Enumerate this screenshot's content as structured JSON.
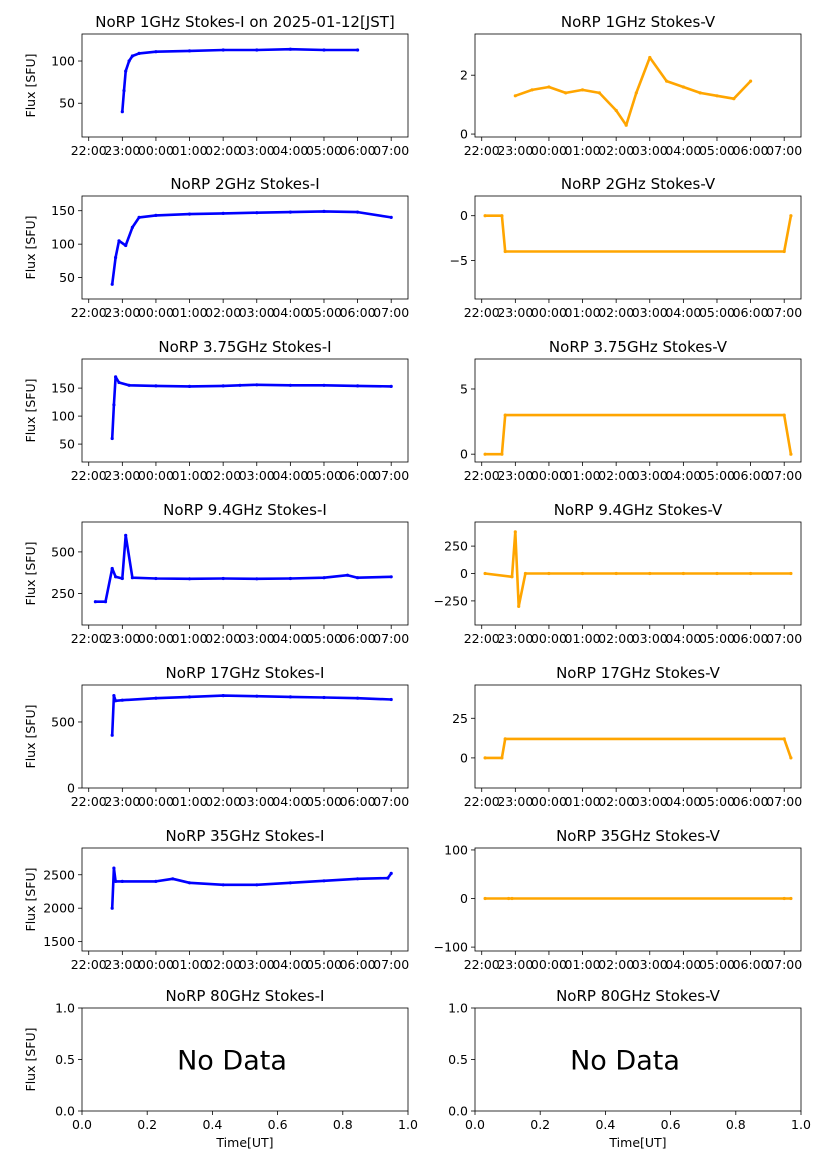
{
  "chart_data": [
    {
      "id": "p1",
      "type": "scatter",
      "title": "NoRP 1GHz Stokes-I on 2025-01-12[JST]",
      "ylabel": "Flux [SFU]",
      "xlabel": "",
      "ylim": [
        10,
        132
      ],
      "yticks": [
        "50",
        "100"
      ],
      "ytickvals": [
        50,
        100
      ],
      "xticks": [
        "22:00",
        "23:00",
        "00:00",
        "01:00",
        "02:00",
        "03:00",
        "04:00",
        "05:00",
        "06:00",
        "07:00"
      ],
      "color": "#0000ff",
      "no_data": false,
      "series": [
        {
          "x": [
            23.0,
            23.05,
            23.1,
            23.2,
            23.3,
            23.5,
            24,
            25,
            26,
            27,
            28,
            29,
            30
          ],
          "y": [
            40,
            65,
            88,
            100,
            106,
            109,
            111,
            112,
            113,
            113,
            114,
            113,
            113
          ]
        }
      ]
    },
    {
      "id": "p2",
      "type": "scatter",
      "title": "NoRP 1GHz Stokes-V",
      "ylabel": "",
      "xlabel": "",
      "ylim": [
        -0.1,
        3.4
      ],
      "yticks": [
        "0",
        "2"
      ],
      "ytickvals": [
        0,
        2
      ],
      "xticks": [
        "22:00",
        "23:00",
        "00:00",
        "01:00",
        "02:00",
        "03:00",
        "04:00",
        "05:00",
        "06:00",
        "07:00"
      ],
      "color": "#ffa500",
      "no_data": false,
      "series": [
        {
          "x": [
            23.0,
            23.5,
            24,
            24.5,
            25,
            25.5,
            26,
            26.3,
            26.6,
            27,
            27.5,
            28,
            28.5,
            29,
            29.5,
            30
          ],
          "y": [
            1.3,
            1.5,
            1.6,
            1.4,
            1.5,
            1.4,
            0.8,
            0.3,
            1.4,
            2.6,
            1.8,
            1.6,
            1.4,
            1.3,
            1.2,
            1.8
          ]
        }
      ]
    },
    {
      "id": "p3",
      "type": "scatter",
      "title": "NoRP 2GHz Stokes-I",
      "ylabel": "Flux [SFU]",
      "xlabel": "",
      "ylim": [
        18,
        172
      ],
      "yticks": [
        "50",
        "100",
        "150"
      ],
      "ytickvals": [
        50,
        100,
        150
      ],
      "xticks": [
        "22:00",
        "23:00",
        "00:00",
        "01:00",
        "02:00",
        "03:00",
        "04:00",
        "05:00",
        "06:00",
        "07:00"
      ],
      "color": "#0000ff",
      "no_data": false,
      "series": [
        {
          "x": [
            22.7,
            22.8,
            22.9,
            23.1,
            23.3,
            23.5,
            24,
            25,
            26,
            27,
            28,
            29,
            30,
            31
          ],
          "y": [
            40,
            80,
            105,
            98,
            125,
            140,
            143,
            145,
            146,
            147,
            148,
            149,
            148,
            140
          ]
        }
      ]
    },
    {
      "id": "p4",
      "type": "scatter",
      "title": "NoRP 2GHz Stokes-V",
      "ylabel": "",
      "xlabel": "",
      "ylim": [
        -9.3,
        2.2
      ],
      "yticks": [
        "0",
        "−5"
      ],
      "ytickvals": [
        0,
        -5
      ],
      "xticks": [
        "22:00",
        "23:00",
        "00:00",
        "01:00",
        "02:00",
        "03:00",
        "04:00",
        "05:00",
        "06:00",
        "07:00"
      ],
      "color": "#ffa500",
      "no_data": false,
      "series": [
        {
          "x": [
            22.1,
            22.6,
            22.7,
            31.0,
            31.2
          ],
          "y": [
            0,
            0,
            -4,
            -4,
            0
          ]
        }
      ]
    },
    {
      "id": "p5",
      "type": "scatter",
      "title": "NoRP 3.75GHz Stokes-I",
      "ylabel": "Flux [SFU]",
      "xlabel": "",
      "ylim": [
        18,
        202
      ],
      "yticks": [
        "50",
        "100",
        "150"
      ],
      "ytickvals": [
        50,
        100,
        150
      ],
      "xticks": [
        "22:00",
        "23:00",
        "00:00",
        "01:00",
        "02:00",
        "03:00",
        "04:00",
        "05:00",
        "06:00",
        "07:00"
      ],
      "color": "#0000ff",
      "no_data": false,
      "series": [
        {
          "x": [
            22.7,
            22.75,
            22.8,
            22.9,
            23.2,
            24,
            25,
            26,
            26.5,
            27,
            28,
            29,
            30,
            31
          ],
          "y": [
            60,
            120,
            170,
            160,
            155,
            154,
            153,
            154,
            155,
            156,
            155,
            155,
            154,
            153
          ]
        }
      ]
    },
    {
      "id": "p6",
      "type": "scatter",
      "title": "NoRP 3.75GHz Stokes-V",
      "ylabel": "",
      "xlabel": "",
      "ylim": [
        -0.6,
        7.3
      ],
      "yticks": [
        "0",
        "5"
      ],
      "ytickvals": [
        0,
        5
      ],
      "xticks": [
        "22:00",
        "23:00",
        "00:00",
        "01:00",
        "02:00",
        "03:00",
        "04:00",
        "05:00",
        "06:00",
        "07:00"
      ],
      "color": "#ffa500",
      "no_data": false,
      "series": [
        {
          "x": [
            22.1,
            22.6,
            22.7,
            31.0,
            31.2
          ],
          "y": [
            0,
            0,
            3,
            3,
            0
          ]
        }
      ]
    },
    {
      "id": "p7",
      "type": "scatter",
      "title": "NoRP 9.4GHz Stokes-I",
      "ylabel": "Flux [SFU]",
      "xlabel": "",
      "ylim": [
        60,
        680
      ],
      "yticks": [
        "250",
        "500"
      ],
      "ytickvals": [
        250,
        500
      ],
      "xticks": [
        "22:00",
        "23:00",
        "00:00",
        "01:00",
        "02:00",
        "03:00",
        "04:00",
        "05:00",
        "06:00",
        "07:00"
      ],
      "color": "#0000ff",
      "no_data": false,
      "series": [
        {
          "x": [
            22.2,
            22.5,
            22.7,
            22.8,
            23.0,
            23.1,
            23.3,
            24,
            25,
            26,
            27,
            28,
            29,
            29.7,
            30,
            31
          ],
          "y": [
            200,
            200,
            400,
            350,
            340,
            600,
            345,
            340,
            338,
            340,
            338,
            340,
            345,
            360,
            345,
            350
          ]
        }
      ]
    },
    {
      "id": "p8",
      "type": "scatter",
      "title": "NoRP 9.4GHz Stokes-V",
      "ylabel": "",
      "xlabel": "",
      "ylim": [
        -470,
        470
      ],
      "yticks": [
        "−250",
        "0",
        "250"
      ],
      "ytickvals": [
        -250,
        0,
        250
      ],
      "xticks": [
        "22:00",
        "23:00",
        "00:00",
        "01:00",
        "02:00",
        "03:00",
        "04:00",
        "05:00",
        "06:00",
        "07:00"
      ],
      "color": "#ffa500",
      "no_data": false,
      "series": [
        {
          "x": [
            22.1,
            22.9,
            23.0,
            23.1,
            23.3,
            24,
            25,
            26,
            27,
            28,
            29,
            30,
            31.2
          ],
          "y": [
            0,
            -30,
            380,
            -300,
            0,
            0,
            0,
            0,
            0,
            0,
            0,
            0,
            0
          ]
        }
      ]
    },
    {
      "id": "p9",
      "type": "scatter",
      "title": "NoRP 17GHz Stokes-I",
      "ylabel": "Flux [SFU]",
      "xlabel": "",
      "ylim": [
        0,
        780
      ],
      "yticks": [
        "0",
        "500"
      ],
      "ytickvals": [
        0,
        500
      ],
      "xticks": [
        "22:00",
        "23:00",
        "00:00",
        "01:00",
        "02:00",
        "03:00",
        "04:00",
        "05:00",
        "06:00",
        "07:00"
      ],
      "color": "#0000ff",
      "no_data": false,
      "series": [
        {
          "x": [
            22.7,
            22.75,
            22.8,
            23,
            24,
            25,
            26,
            27,
            28,
            29,
            30,
            31
          ],
          "y": [
            400,
            700,
            660,
            665,
            680,
            690,
            700,
            695,
            690,
            685,
            680,
            670
          ]
        }
      ]
    },
    {
      "id": "p10",
      "type": "scatter",
      "title": "NoRP 17GHz Stokes-V",
      "ylabel": "",
      "xlabel": "",
      "ylim": [
        -19,
        46
      ],
      "yticks": [
        "0",
        "25"
      ],
      "ytickvals": [
        0,
        25
      ],
      "xticks": [
        "22:00",
        "23:00",
        "00:00",
        "01:00",
        "02:00",
        "03:00",
        "04:00",
        "05:00",
        "06:00",
        "07:00"
      ],
      "color": "#ffa500",
      "no_data": false,
      "series": [
        {
          "x": [
            22.1,
            22.6,
            22.7,
            31.0,
            31.2
          ],
          "y": [
            0,
            0,
            12,
            12,
            0
          ]
        }
      ]
    },
    {
      "id": "p11",
      "type": "scatter",
      "title": "NoRP 35GHz Stokes-I",
      "ylabel": "Flux [SFU]",
      "xlabel": "",
      "ylim": [
        1360,
        2900
      ],
      "yticks": [
        "1500",
        "2000",
        "2500"
      ],
      "ytickvals": [
        1500,
        2000,
        2500
      ],
      "xticks": [
        "22:00",
        "23:00",
        "00:00",
        "01:00",
        "02:00",
        "03:00",
        "04:00",
        "05:00",
        "06:00",
        "07:00"
      ],
      "color": "#0000ff",
      "no_data": false,
      "series": [
        {
          "x": [
            22.7,
            22.75,
            22.8,
            23,
            24,
            24.5,
            25,
            26,
            27,
            28,
            29,
            30,
            30.9,
            31
          ],
          "y": [
            2000,
            2600,
            2400,
            2400,
            2400,
            2440,
            2380,
            2350,
            2350,
            2380,
            2410,
            2440,
            2450,
            2520
          ]
        }
      ]
    },
    {
      "id": "p12",
      "type": "scatter",
      "title": "NoRP 35GHz Stokes-V",
      "ylabel": "",
      "xlabel": "",
      "ylim": [
        -108,
        104
      ],
      "yticks": [
        "−100",
        "0",
        "100"
      ],
      "ytickvals": [
        -100,
        0,
        100
      ],
      "xticks": [
        "22:00",
        "23:00",
        "00:00",
        "01:00",
        "02:00",
        "03:00",
        "04:00",
        "05:00",
        "06:00",
        "07:00"
      ],
      "color": "#ffa500",
      "no_data": false,
      "series": [
        {
          "x": [
            22.1,
            22.8,
            22.9,
            31.0,
            31.2
          ],
          "y": [
            0,
            0,
            0,
            0,
            0
          ]
        }
      ]
    },
    {
      "id": "p13",
      "type": "scatter",
      "title": "NoRP 80GHz Stokes-I",
      "ylabel": "Flux [SFU]",
      "xlabel": "Time[UT]",
      "ylim": [
        0,
        1
      ],
      "yticks": [
        "0.0",
        "0.5",
        "1.0"
      ],
      "ytickvals": [
        0,
        0.5,
        1
      ],
      "xticks": [
        "0.0",
        "0.2",
        "0.4",
        "0.6",
        "0.8",
        "1.0"
      ],
      "color": "#0000ff",
      "no_data": true,
      "no_data_text": "No Data",
      "series": []
    },
    {
      "id": "p14",
      "type": "scatter",
      "title": "NoRP 80GHz Stokes-V",
      "ylabel": "",
      "xlabel": "Time[UT]",
      "ylim": [
        0,
        1
      ],
      "yticks": [
        "0.0",
        "0.5",
        "1.0"
      ],
      "ytickvals": [
        0,
        0.5,
        1
      ],
      "xticks": [
        "0.0",
        "0.2",
        "0.4",
        "0.6",
        "0.8",
        "1.0"
      ],
      "color": "#ffa500",
      "no_data": true,
      "no_data_text": "No Data",
      "series": []
    }
  ]
}
